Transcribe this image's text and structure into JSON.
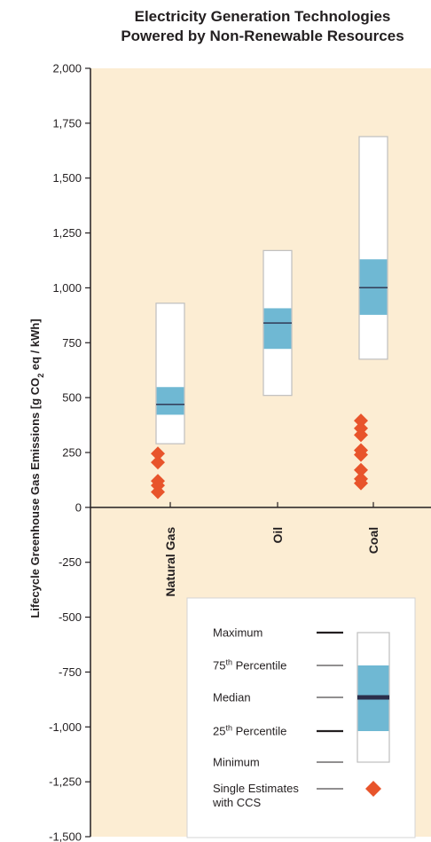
{
  "chart_data": {
    "type": "box",
    "title": "Electricity Generation Technologies",
    "subtitle": "Powered by Non-Renewable Resources",
    "ylabel": "Lifecycle Greenhouse Gas Emissions [g CO2 eq / kWh]",
    "ylabel_parts": {
      "before": "Lifecycle Greenhouse Gas Emissions [g CO",
      "sub": "2",
      "after": " eq / kWh]"
    },
    "ylim": [
      -1500,
      2000
    ],
    "yticks": [
      {
        "value": 2000,
        "label": "2,000"
      },
      {
        "value": 1750,
        "label": "1,750"
      },
      {
        "value": 1500,
        "label": "1,500"
      },
      {
        "value": 1250,
        "label": "1,250"
      },
      {
        "value": 1000,
        "label": "1,000"
      },
      {
        "value": 750,
        "label": "750"
      },
      {
        "value": 500,
        "label": "500"
      },
      {
        "value": 250,
        "label": "250"
      },
      {
        "value": 0,
        "label": "0"
      },
      {
        "value": -250,
        "label": "-250"
      },
      {
        "value": -500,
        "label": "-500"
      },
      {
        "value": -750,
        "label": "-750"
      },
      {
        "value": -1000,
        "label": "-1,000"
      },
      {
        "value": -1250,
        "label": "-1,250"
      },
      {
        "value": -1500,
        "label": "-1,500"
      }
    ],
    "categories": [
      "Natural Gas",
      "Oil",
      "Coal"
    ],
    "boxes": [
      {
        "category": "Natural Gas",
        "min": 290,
        "q1": 422,
        "median": 469,
        "q3": 548,
        "max": 930,
        "ccs_estimates": [
          245,
          205,
          120,
          100,
          70
        ]
      },
      {
        "category": "Oil",
        "min": 510,
        "q1": 722,
        "median": 840,
        "q3": 907,
        "max": 1170,
        "ccs_estimates": []
      },
      {
        "category": "Coal",
        "min": 675,
        "q1": 877,
        "median": 1001,
        "q3": 1130,
        "max": 1689,
        "ccs_estimates": [
          395,
          360,
          330,
          260,
          240,
          170,
          130,
          110
        ]
      }
    ],
    "grid": false,
    "legend": {
      "position": "bottom-right",
      "items": [
        {
          "label": "Maximum",
          "sup": ""
        },
        {
          "label": "75th Percentile",
          "prefix": "75",
          "sup": "th",
          "suffix": " Percentile"
        },
        {
          "label": "Median",
          "sup": ""
        },
        {
          "label": "25th Percentile",
          "prefix": "25",
          "sup": "th",
          "suffix": " Percentile"
        },
        {
          "label": "Minimum",
          "sup": ""
        },
        {
          "label": "Single Estimates with CCS",
          "lines": [
            "Single Estimates",
            "with CCS"
          ]
        }
      ]
    },
    "colors": {
      "plot_background": "#fcedd3",
      "box_fill": "#ffffff",
      "box_stroke": "#bfbfbf",
      "iqr_fill": "#6fb8d3",
      "median_line": "#2b2e4a",
      "ccs_marker": "#e8542b",
      "axis": "#231f20"
    }
  }
}
